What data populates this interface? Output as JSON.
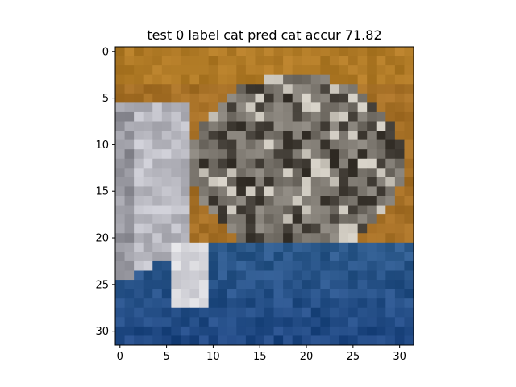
{
  "figure": {
    "title": "test 0 label cat pred cat accur 71.82"
  },
  "image_panel": {
    "grid_size": 32,
    "x_ticks": [
      {
        "value": 0,
        "label": "0"
      },
      {
        "value": 5,
        "label": "5"
      },
      {
        "value": 10,
        "label": "10"
      },
      {
        "value": 15,
        "label": "15"
      },
      {
        "value": 20,
        "label": "20"
      },
      {
        "value": 25,
        "label": "25"
      },
      {
        "value": 30,
        "label": "30"
      }
    ],
    "y_ticks": [
      {
        "value": 0,
        "label": "0"
      },
      {
        "value": 5,
        "label": "5"
      },
      {
        "value": 10,
        "label": "10"
      },
      {
        "value": 15,
        "label": "15"
      },
      {
        "value": 20,
        "label": "20"
      },
      {
        "value": 25,
        "label": "25"
      },
      {
        "value": 30,
        "label": "30"
      }
    ],
    "content": "low-resolution 32x32 photo of a grey tabby cat on an orange background with a blue cloth in the foreground",
    "palette": {
      "background_orange": "#b07a25",
      "cat_grey": "#7a7670",
      "cat_dark": "#3f3a33",
      "cat_light": "#c9c6c2",
      "cloth_blue": "#2f5f8f",
      "cloth_dark_blue": "#1f3f66",
      "axis_color": "#000000"
    }
  }
}
